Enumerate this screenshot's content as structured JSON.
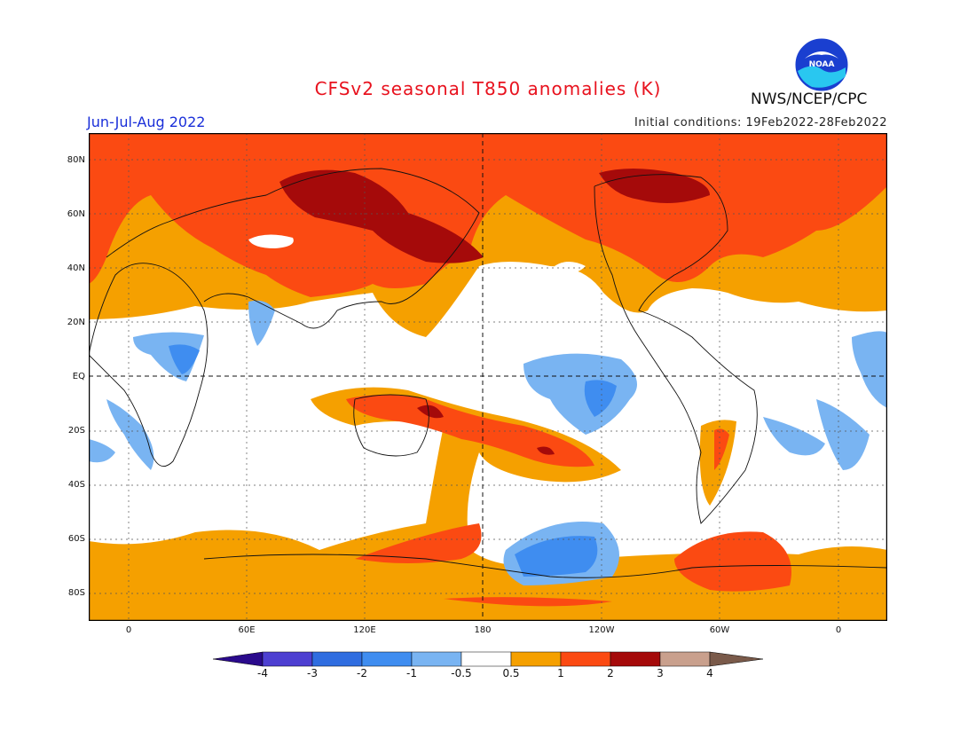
{
  "header": {
    "title": "CFSv2 seasonal T850 anomalies (K)",
    "season": "Jun-Jul-Aug 2022",
    "initial_conditions": "Initial conditions: 19Feb2022-28Feb2022",
    "agency": "NWS/NCEP/CPC",
    "logo_text": "NOAA"
  },
  "axes": {
    "lat_labels": [
      "80N",
      "60N",
      "40N",
      "20N",
      "EQ",
      "20S",
      "40S",
      "60S",
      "80S"
    ],
    "lon_labels": [
      "0",
      "60E",
      "120E",
      "180",
      "120W",
      "60W",
      "0"
    ]
  },
  "colorbar": {
    "labels": [
      "-4",
      "-3",
      "-2",
      "-1",
      "-0.5",
      "0.5",
      "1",
      "2",
      "3",
      "4"
    ],
    "colors": [
      "#2a0a8c",
      "#4d3fd1",
      "#2f6de0",
      "#3f8df0",
      "#79b4f2",
      "#ffffff",
      "#f5a000",
      "#fb4a12",
      "#a50a0a",
      "#c9a08d",
      "#7a5a4a"
    ]
  },
  "palette": {
    "ocean_white": "#ffffff",
    "orange": "#f5a000",
    "red": "#fb4a12",
    "darkred": "#a50a0a",
    "lightblue": "#79b4f2",
    "blue": "#3f8df0"
  }
}
